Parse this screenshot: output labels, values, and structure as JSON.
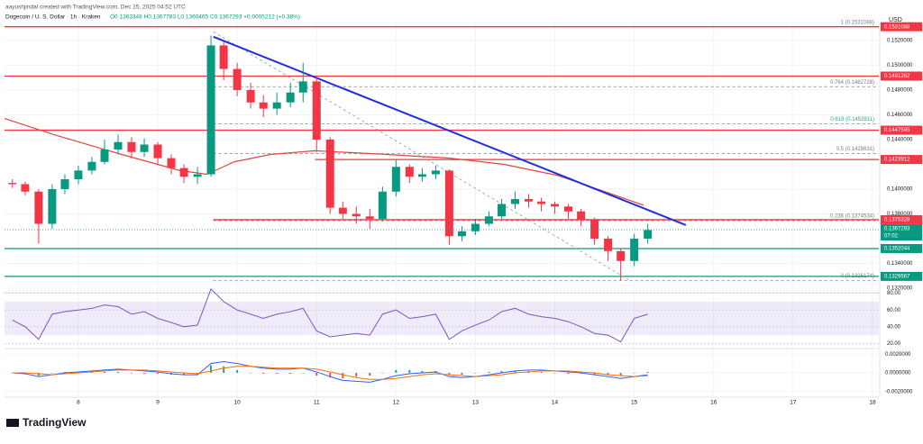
{
  "header": {
    "author": "aayushjindal created with TradingView.com, Dec 15, 2025 04:52 UTC",
    "symbol": "Dogecoin / U. S. Dollar · 1h · Kraken",
    "ohlc": "O0.1363348 H0.1367783 L0.1360465 C0.1367293 +0.0005212 (+0.38%)",
    "currency": "USD",
    "countdown": "07:02",
    "brand": "TradingView"
  },
  "chart_data": {
    "type": "candlestick",
    "up_color": "#089981",
    "down_color": "#f23645",
    "x": [
      7.17,
      7.33,
      7.5,
      7.67,
      7.83,
      8,
      8.17,
      8.33,
      8.5,
      8.67,
      8.83,
      9,
      9.17,
      9.33,
      9.5,
      9.67,
      9.83,
      10,
      10.17,
      10.33,
      10.5,
      10.67,
      10.83,
      11,
      11.17,
      11.33,
      11.5,
      11.67,
      11.83,
      12,
      12.17,
      12.33,
      12.5,
      12.67,
      12.83,
      13,
      13.17,
      13.33,
      13.5,
      13.67,
      13.83,
      14,
      14.17,
      14.33,
      14.5,
      14.67,
      14.83,
      15,
      15.17
    ],
    "open": [
      0.1405,
      0.1404,
      0.1398,
      0.1372,
      0.14,
      0.1408,
      0.1415,
      0.1422,
      0.1432,
      0.1438,
      0.143,
      0.1436,
      0.1425,
      0.1417,
      0.141,
      0.1412,
      0.1516,
      0.1497,
      0.148,
      0.147,
      0.1465,
      0.147,
      0.1478,
      0.1487,
      0.144,
      0.1385,
      0.138,
      0.1378,
      0.1376,
      0.1398,
      0.1418,
      0.141,
      0.1412,
      0.1415,
      0.1362,
      0.1366,
      0.1372,
      0.1378,
      0.1388,
      0.1392,
      0.139,
      0.1388,
      0.1386,
      0.1382,
      0.1375,
      0.136,
      0.135,
      0.1342,
      0.136
    ],
    "high": [
      0.1408,
      0.1406,
      0.14,
      0.1404,
      0.1412,
      0.1419,
      0.1426,
      0.144,
      0.1444,
      0.1442,
      0.1441,
      0.1438,
      0.1428,
      0.142,
      0.1418,
      0.1524,
      0.1519,
      0.1502,
      0.1486,
      0.1476,
      0.1478,
      0.1486,
      0.1502,
      0.149,
      0.1442,
      0.139,
      0.1386,
      0.1384,
      0.1402,
      0.1424,
      0.142,
      0.1417,
      0.1419,
      0.1416,
      0.137,
      0.1376,
      0.1382,
      0.1392,
      0.1398,
      0.1396,
      0.1393,
      0.139,
      0.1388,
      0.1384,
      0.1377,
      0.1362,
      0.1352,
      0.1364,
      0.1372
    ],
    "low": [
      0.1401,
      0.1395,
      0.1356,
      0.1368,
      0.1396,
      0.1404,
      0.1412,
      0.142,
      0.1428,
      0.1425,
      0.1426,
      0.142,
      0.1412,
      0.1405,
      0.1404,
      0.141,
      0.1488,
      0.1475,
      0.1465,
      0.1458,
      0.146,
      0.1466,
      0.147,
      0.143,
      0.138,
      0.1376,
      0.1372,
      0.1368,
      0.1374,
      0.1394,
      0.1405,
      0.1406,
      0.1408,
      0.1355,
      0.1358,
      0.1363,
      0.137,
      0.1376,
      0.1384,
      0.1385,
      0.1382,
      0.138,
      0.1376,
      0.137,
      0.1355,
      0.1342,
      0.1326,
      0.1338,
      0.1356
    ],
    "close": [
      0.1404,
      0.1398,
      0.1372,
      0.14,
      0.1408,
      0.1415,
      0.1422,
      0.1432,
      0.1438,
      0.143,
      0.1436,
      0.1425,
      0.1417,
      0.141,
      0.1412,
      0.1516,
      0.1497,
      0.148,
      0.147,
      0.1465,
      0.147,
      0.1478,
      0.1487,
      0.144,
      0.1385,
      0.138,
      0.1378,
      0.1376,
      0.1398,
      0.1418,
      0.141,
      0.1412,
      0.1415,
      0.1362,
      0.1366,
      0.1372,
      0.1378,
      0.1388,
      0.1392,
      0.139,
      0.1388,
      0.1386,
      0.1382,
      0.1375,
      0.136,
      0.135,
      0.1342,
      0.136,
      0.1367
    ],
    "xlim": [
      7.07,
      18.08
    ],
    "xticks": [
      8,
      9,
      10,
      11,
      12,
      13,
      14,
      15,
      16,
      17,
      18
    ],
    "ylim": [
      0.13164,
      0.15345
    ],
    "yticks": [
      {
        "value": 0.152,
        "label": "0.1520000"
      },
      {
        "value": 0.15,
        "label": "0.1500000"
      },
      {
        "value": 0.148,
        "label": "0.1480000"
      },
      {
        "value": 0.146,
        "label": "0.1460000"
      },
      {
        "value": 0.144,
        "label": "0.1440000"
      },
      {
        "value": 0.14,
        "label": "0.1400000"
      },
      {
        "value": 0.138,
        "label": "0.1380000"
      },
      {
        "value": 0.134,
        "label": "0.1340000"
      },
      {
        "value": 0.132,
        "label": "0.1320000"
      }
    ],
    "ma": {
      "color": "#e0463e",
      "x": [
        7.07,
        7.69,
        8.49,
        9.28,
        9.62,
        9.96,
        10.42,
        10.98,
        11.89,
        12.68,
        13.36,
        14.04,
        14.72,
        15.12
      ],
      "values": [
        0.1457,
        0.1444,
        0.1429,
        0.1415,
        0.1412,
        0.1422,
        0.1428,
        0.1431,
        0.1428,
        0.1425,
        0.142,
        0.1411,
        0.1396,
        0.1387
      ]
    },
    "trendline": {
      "color": "#1e2ee0",
      "x": [
        9.7,
        15.65
      ],
      "values": [
        0.1523,
        0.1371
      ]
    },
    "fib_diagonal": {
      "color": "#999999",
      "x": [
        9.7,
        14.95
      ],
      "values": [
        0.1527,
        0.1326
      ]
    },
    "levels": [
      {
        "value": 0.1531088,
        "color": "#f23645",
        "start": 7.07
      },
      {
        "value": 0.1491262,
        "color": "#f23645",
        "start": 7.07
      },
      {
        "value": 0.1447595,
        "color": "#f23645",
        "start": 7.07
      },
      {
        "value": 0.1423912,
        "color": "#f23645",
        "start": 10.98
      },
      {
        "value": 0.1375328,
        "color": "#f23645",
        "start": 9.7
      },
      {
        "value": 0.1352044,
        "color": "#089981",
        "start": 7.07
      },
      {
        "value": 0.1329567,
        "color": "#089981",
        "start": 7.07
      }
    ],
    "fib": [
      {
        "value": 0.1531088,
        "label": "1 (0.1531088)",
        "color": "#787b86"
      },
      {
        "value": 0.1482728,
        "label": "0.764 (0.1482728)",
        "color": "#787b86"
      },
      {
        "value": 0.1452811,
        "label": "0.618 (0.1452811)",
        "color": "#22ab94"
      },
      {
        "value": 0.1428631,
        "label": "0.5 (0.1428631)",
        "color": "#787b86"
      },
      {
        "value": 0.1374534,
        "label": "0.236 (0.1374534)",
        "color": "#787b86"
      },
      {
        "value": 0.1326174,
        "label": "0 (0.1326174)",
        "color": "#787b86"
      }
    ],
    "last_price": 0.1367293,
    "rsi": {
      "color": "#7e57c2",
      "band": [
        30,
        70
      ],
      "ylim": [
        14,
        86
      ],
      "yticks": [
        {
          "value": 80,
          "label": "80.00"
        },
        {
          "value": 60,
          "label": "60.00"
        },
        {
          "value": 40,
          "label": "40.00"
        },
        {
          "value": 20,
          "label": "20.00"
        }
      ],
      "values": [
        48,
        40,
        25,
        55,
        58,
        60,
        62,
        66,
        64,
        55,
        58,
        50,
        45,
        40,
        42,
        85,
        70,
        60,
        55,
        50,
        55,
        58,
        62,
        35,
        28,
        30,
        32,
        30,
        55,
        60,
        50,
        52,
        55,
        25,
        35,
        42,
        48,
        58,
        62,
        55,
        52,
        50,
        46,
        40,
        32,
        30,
        22,
        50,
        55
      ]
    },
    "macd": {
      "macd_color": "#2962ff",
      "signal_color": "#ff6d00",
      "ylim": [
        -0.0025,
        0.0025
      ],
      "yticks": [
        {
          "value": 0.002,
          "label": "0.0020000"
        },
        {
          "value": 0,
          "label": "0.0000000"
        },
        {
          "value": -0.002,
          "label": "-0.0020000"
        }
      ],
      "macd": [
        0,
        -0.0001,
        -0.0004,
        -0.0002,
        0,
        0.0001,
        0.0002,
        0.0003,
        0.0004,
        0.0003,
        0.0002,
        0.0001,
        -0.0001,
        -0.0002,
        -0.0002,
        0.001,
        0.0012,
        0.001,
        0.0007,
        0.0005,
        0.0004,
        0.0004,
        0.0005,
        0.0001,
        -0.0004,
        -0.0008,
        -0.0009,
        -0.001,
        -0.0007,
        -0.0003,
        -0.0001,
        0,
        0.0001,
        -0.0004,
        -0.0005,
        -0.0004,
        -0.0002,
        0,
        0.0002,
        0.0003,
        0.0003,
        0.0002,
        0.0001,
        0,
        -0.0002,
        -0.0004,
        -0.0006,
        -0.0004,
        -0.0002
      ],
      "signal": [
        0,
        0,
        -0.0001,
        -0.0002,
        -0.0001,
        0,
        0.0001,
        0.0002,
        0.0003,
        0.0003,
        0.0003,
        0.0002,
        0.0001,
        0,
        -0.0001,
        0.0002,
        0.0005,
        0.0007,
        0.0007,
        0.0006,
        0.0005,
        0.0005,
        0.0005,
        0.0004,
        0.0001,
        -0.0002,
        -0.0005,
        -0.0007,
        -0.0007,
        -0.0006,
        -0.0004,
        -0.0002,
        -0.0001,
        -0.0002,
        -0.0003,
        -0.0004,
        -0.0003,
        -0.0002,
        0,
        0.0001,
        0.0002,
        0.0002,
        0.0002,
        0.0001,
        0,
        -0.0002,
        -0.0003,
        -0.0004,
        -0.0003
      ]
    }
  }
}
